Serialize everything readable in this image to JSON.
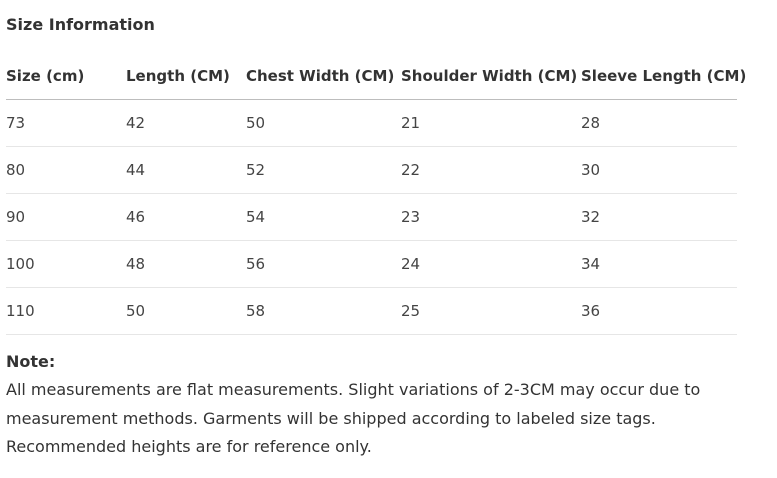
{
  "section_title": "Size Information",
  "table": {
    "headers": [
      "Size (cm)",
      "Length (CM)",
      "Chest Width (CM)",
      "Shoulder Width (CM)",
      "Sleeve Length (CM)"
    ],
    "rows": [
      [
        "73",
        "42",
        "50",
        "21",
        "28"
      ],
      [
        "80",
        "44",
        "52",
        "22",
        "30"
      ],
      [
        "90",
        "46",
        "54",
        "23",
        "32"
      ],
      [
        "100",
        "48",
        "56",
        "24",
        "34"
      ],
      [
        "110",
        "50",
        "58",
        "25",
        "36"
      ]
    ]
  },
  "note": {
    "title": "Note:",
    "text": "All measurements are flat measurements. Slight variations of 2-3CM may occur due to measurement methods. Garments will be shipped according to labeled size tags. Recommended heights are for reference only."
  }
}
